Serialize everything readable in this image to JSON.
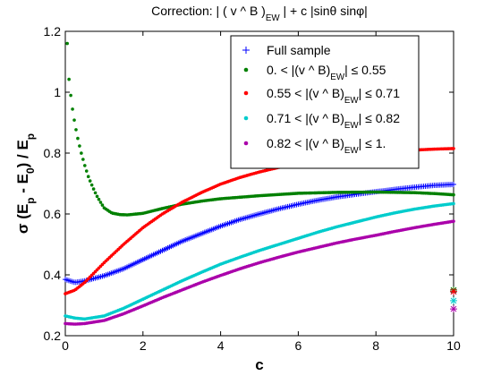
{
  "chart_data": {
    "type": "scatter",
    "title_parts": [
      {
        "t": "Correction: | ( v ^ B )"
      },
      {
        "t": "EW",
        "sub": true
      },
      {
        "t": " | + c |sinθ sinφ|"
      }
    ],
    "xlabel": "c",
    "ylabel_parts": [
      {
        "t": "σ (E"
      },
      {
        "t": "p",
        "sub": true
      },
      {
        "t": " - E"
      },
      {
        "t": "0",
        "sub": true
      },
      {
        "t": ") / E"
      },
      {
        "t": "p",
        "sub": true
      }
    ],
    "xlim": [
      0,
      10
    ],
    "ylim": [
      0.2,
      1.2
    ],
    "xticks": [
      0,
      2,
      4,
      6,
      8,
      10
    ],
    "yticks": [
      0.2,
      0.4,
      0.6,
      0.8,
      1.0,
      1.2
    ],
    "xtick_labels": [
      "0",
      "2",
      "4",
      "6",
      "8",
      "10"
    ],
    "ytick_labels": [
      "0.2",
      "0.4",
      "0.6",
      "0.8",
      "1",
      "1.2"
    ],
    "grid": false,
    "legend_position": "top-right",
    "series": [
      {
        "legend_parts": [
          {
            "t": "Full sample"
          }
        ],
        "color": "#0000ff",
        "marker": "plus",
        "x": [
          0,
          0.25,
          0.5,
          1,
          1.5,
          2,
          2.5,
          3,
          3.5,
          4,
          4.5,
          5,
          5.5,
          6,
          6.5,
          7,
          7.5,
          8,
          8.5,
          9,
          9.5,
          10
        ],
        "y": [
          0.385,
          0.375,
          0.38,
          0.397,
          0.42,
          0.45,
          0.48,
          0.51,
          0.535,
          0.56,
          0.582,
          0.6,
          0.617,
          0.632,
          0.645,
          0.656,
          0.665,
          0.673,
          0.681,
          0.688,
          0.694,
          0.697
        ],
        "end_star": 0.345
      },
      {
        "legend_parts": [
          {
            "t": "0. < |(v ^ B)"
          },
          {
            "t": "EW",
            "sub": true
          },
          {
            "t": "| ≤ 0.55"
          }
        ],
        "color": "#008000",
        "marker": "dot",
        "x": [
          0.05,
          0.1,
          0.2,
          0.3,
          0.4,
          0.5,
          0.6,
          0.7,
          0.8,
          0.9,
          1.0,
          1.2,
          1.4,
          1.6,
          2,
          2.5,
          3,
          3.5,
          4,
          5,
          6,
          7,
          8,
          9,
          9.5,
          10
        ],
        "y": [
          1.16,
          1.03,
          0.93,
          0.86,
          0.805,
          0.76,
          0.72,
          0.69,
          0.662,
          0.64,
          0.62,
          0.603,
          0.598,
          0.597,
          0.602,
          0.618,
          0.632,
          0.642,
          0.65,
          0.66,
          0.668,
          0.671,
          0.672,
          0.67,
          0.667,
          0.663
        ],
        "end_star": 0.35
      },
      {
        "legend_parts": [
          {
            "t": "0.55 < |(v ^ B)"
          },
          {
            "t": "EW",
            "sub": true
          },
          {
            "t": "| ≤ 0.71"
          }
        ],
        "color": "#ff0000",
        "marker": "dot",
        "x": [
          0,
          0.25,
          0.5,
          1,
          1.5,
          2,
          2.5,
          3,
          3.5,
          4,
          4.5,
          5,
          5.5,
          6,
          6.5,
          7,
          7.5,
          8,
          8.5,
          9,
          9.5,
          10
        ],
        "y": [
          0.338,
          0.35,
          0.375,
          0.44,
          0.5,
          0.555,
          0.6,
          0.638,
          0.67,
          0.698,
          0.72,
          0.738,
          0.753,
          0.766,
          0.777,
          0.786,
          0.794,
          0.801,
          0.806,
          0.81,
          0.813,
          0.815
        ],
        "end_star": 0.345
      },
      {
        "legend_parts": [
          {
            "t": "0.71 < |(v ^ B)"
          },
          {
            "t": "EW",
            "sub": true
          },
          {
            "t": "| ≤ 0.82"
          }
        ],
        "color": "#00cccc",
        "marker": "dot",
        "x": [
          0,
          0.25,
          0.5,
          1,
          1.5,
          2,
          2.5,
          3,
          3.5,
          4,
          4.5,
          5,
          5.5,
          6,
          6.5,
          7,
          7.5,
          8,
          8.5,
          9,
          9.5,
          10
        ],
        "y": [
          0.265,
          0.258,
          0.255,
          0.265,
          0.29,
          0.32,
          0.35,
          0.38,
          0.408,
          0.435,
          0.458,
          0.48,
          0.5,
          0.52,
          0.54,
          0.558,
          0.574,
          0.59,
          0.604,
          0.616,
          0.626,
          0.634
        ],
        "end_star": 0.315
      },
      {
        "legend_parts": [
          {
            "t": "0.82 < |(v ^ B)"
          },
          {
            "t": "EW",
            "sub": true
          },
          {
            "t": "| ≤ 1."
          }
        ],
        "color": "#aa00aa",
        "marker": "dot",
        "x": [
          0,
          0.25,
          0.5,
          1,
          1.5,
          2,
          2.5,
          3,
          3.5,
          4,
          4.5,
          5,
          5.5,
          6,
          6.5,
          7,
          7.5,
          8,
          8.5,
          9,
          9.5,
          10
        ],
        "y": [
          0.24,
          0.238,
          0.24,
          0.25,
          0.272,
          0.298,
          0.325,
          0.35,
          0.375,
          0.398,
          0.42,
          0.44,
          0.458,
          0.475,
          0.49,
          0.505,
          0.518,
          0.53,
          0.543,
          0.555,
          0.566,
          0.576
        ],
        "end_star": 0.288
      }
    ]
  }
}
